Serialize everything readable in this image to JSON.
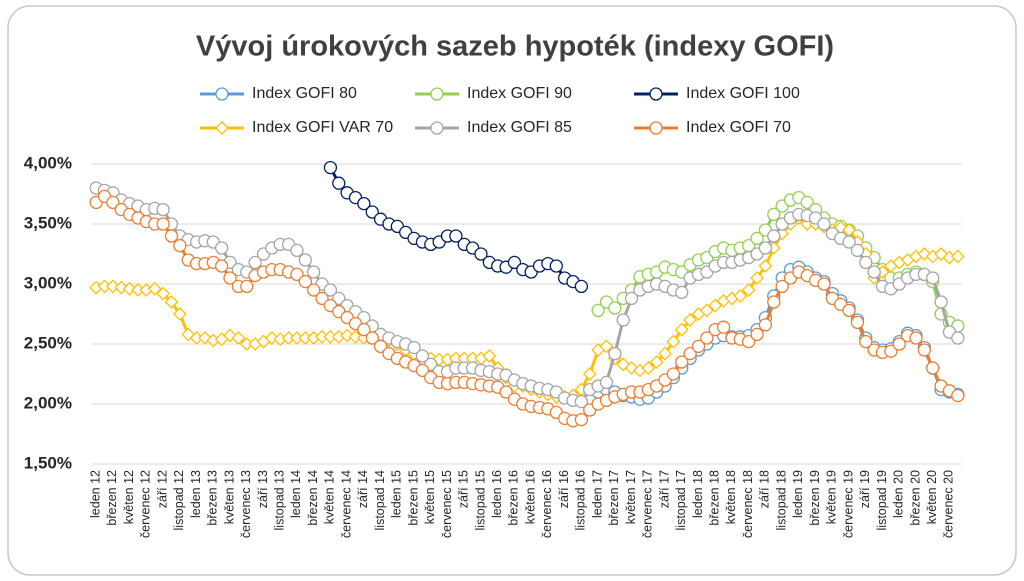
{
  "chart_data": {
    "type": "line",
    "title": "Vývoj úrokových sazeb hypoték (indexy GOFI)",
    "categories": [
      "leden 12",
      null,
      "březen 12",
      null,
      "květen 12",
      null,
      "červenec 12",
      null,
      "září 12",
      null,
      "listopad 12",
      null,
      "leden 13",
      null,
      "březen 13",
      null,
      "květen 13",
      null,
      "červenec 13",
      null,
      "září 13",
      null,
      "listopad 13",
      null,
      "leden 14",
      null,
      "březen 14",
      null,
      "květen 14",
      null,
      "červenec 14",
      null,
      "září 14",
      null,
      "listopad 14",
      null,
      "leden 15",
      null,
      "březen 15",
      null,
      "květen 15",
      null,
      "červenec 15",
      null,
      "září 15",
      null,
      "listopad 15",
      null,
      "leden 16",
      null,
      "březen 16",
      null,
      "květen 16",
      null,
      "červenec 16",
      null,
      "září 16",
      null,
      "listopad 16",
      null,
      "leden 17",
      null,
      "březen 17",
      null,
      "květen 17",
      null,
      "červenec 17",
      null,
      "září 17",
      null,
      "listopad 17",
      null,
      "leden 18",
      null,
      "březen 18",
      null,
      "květen 18",
      null,
      "červenec 18",
      null,
      "září 18",
      null,
      "listopad 18",
      null,
      "leden 19",
      null,
      "březen 19",
      null,
      "květen 19",
      null,
      "červenec 19",
      null,
      "září 19",
      null,
      "listopad 19",
      null,
      "leden 20",
      null,
      "březen 20",
      null,
      "květen 20",
      null,
      "červenec 20",
      null
    ],
    "series": [
      {
        "name": "Index GOFI 80",
        "color": "#5b9bd5",
        "marker": "circle",
        "values": [
          null,
          null,
          null,
          null,
          null,
          null,
          null,
          null,
          null,
          null,
          null,
          null,
          null,
          null,
          null,
          null,
          null,
          null,
          null,
          null,
          null,
          null,
          null,
          null,
          null,
          null,
          null,
          null,
          null,
          null,
          null,
          null,
          null,
          null,
          null,
          null,
          null,
          null,
          null,
          null,
          null,
          null,
          null,
          null,
          null,
          null,
          null,
          null,
          null,
          null,
          null,
          null,
          null,
          null,
          null,
          null,
          null,
          null,
          null,
          null,
          2.1,
          2.12,
          2.1,
          2.07,
          2.06,
          2.04,
          2.05,
          2.1,
          2.15,
          2.22,
          2.3,
          2.38,
          2.45,
          2.5,
          2.55,
          2.57,
          2.56,
          2.56,
          2.57,
          2.62,
          2.72,
          2.9,
          3.05,
          3.12,
          3.14,
          3.1,
          3.05,
          3.02,
          2.92,
          2.86,
          2.8,
          2.7,
          2.55,
          2.47,
          2.45,
          2.46,
          2.52,
          2.59,
          2.57,
          2.47,
          2.3,
          2.12,
          2.1,
          2.08
        ]
      },
      {
        "name": "Index GOFI 90",
        "color": "#92d050",
        "marker": "circle",
        "values": [
          null,
          null,
          null,
          null,
          null,
          null,
          null,
          null,
          null,
          null,
          null,
          null,
          null,
          null,
          null,
          null,
          null,
          null,
          null,
          null,
          null,
          null,
          null,
          null,
          null,
          null,
          null,
          null,
          null,
          null,
          null,
          null,
          null,
          null,
          null,
          null,
          null,
          null,
          null,
          null,
          null,
          null,
          null,
          null,
          null,
          null,
          null,
          null,
          null,
          null,
          null,
          null,
          null,
          null,
          null,
          null,
          null,
          null,
          null,
          null,
          2.78,
          2.85,
          2.8,
          2.88,
          2.95,
          3.06,
          3.08,
          3.1,
          3.14,
          3.12,
          3.1,
          3.16,
          3.2,
          3.22,
          3.27,
          3.3,
          3.28,
          3.3,
          3.32,
          3.38,
          3.45,
          3.58,
          3.65,
          3.7,
          3.72,
          3.68,
          3.62,
          3.55,
          3.5,
          3.48,
          3.45,
          3.4,
          3.3,
          3.22,
          3.12,
          3.05,
          3.05,
          3.08,
          3.1,
          3.08,
          3.02,
          2.75,
          2.68,
          2.65
        ]
      },
      {
        "name": "Index GOFI 100",
        "color": "#002060",
        "marker": "circle",
        "values": [
          null,
          null,
          null,
          null,
          null,
          null,
          null,
          null,
          null,
          null,
          null,
          null,
          null,
          null,
          null,
          null,
          null,
          null,
          null,
          null,
          null,
          null,
          null,
          null,
          null,
          null,
          null,
          null,
          3.97,
          3.84,
          3.76,
          3.72,
          3.67,
          3.6,
          3.54,
          3.5,
          3.48,
          3.43,
          3.38,
          3.35,
          3.33,
          3.35,
          3.4,
          3.4,
          3.33,
          3.3,
          3.25,
          3.18,
          3.15,
          3.14,
          3.18,
          3.12,
          3.1,
          3.15,
          3.17,
          3.15,
          3.05,
          3.02,
          2.98,
          null,
          null,
          null,
          null,
          null,
          null,
          null,
          null,
          null,
          null,
          null,
          null,
          null,
          null,
          null,
          null,
          null,
          null,
          null,
          null,
          null,
          null,
          null,
          null,
          null,
          null,
          null,
          null,
          null,
          null,
          null,
          null,
          null,
          null,
          null,
          null,
          null,
          null,
          null,
          null,
          null,
          null,
          null,
          null,
          null
        ]
      },
      {
        "name": "Index GOFI VAR 70",
        "color": "#ffc000",
        "marker": "diamond",
        "values": [
          2.97,
          2.98,
          2.98,
          2.97,
          2.96,
          2.95,
          2.95,
          2.96,
          2.92,
          2.85,
          2.75,
          2.58,
          2.55,
          2.55,
          2.53,
          2.54,
          2.57,
          2.55,
          2.5,
          2.5,
          2.52,
          2.55,
          2.54,
          2.55,
          2.55,
          2.55,
          2.55,
          2.56,
          2.56,
          2.56,
          2.57,
          2.56,
          2.55,
          2.55,
          2.55,
          2.53,
          2.5,
          2.45,
          2.42,
          2.4,
          2.38,
          2.37,
          2.37,
          2.38,
          2.38,
          2.38,
          2.38,
          2.4,
          2.3,
          2.22,
          2.15,
          2.15,
          2.12,
          2.1,
          2.08,
          2.06,
          2.06,
          2.07,
          2.12,
          2.25,
          2.45,
          2.48,
          2.38,
          2.33,
          2.3,
          2.28,
          2.3,
          2.35,
          2.42,
          2.52,
          2.62,
          2.7,
          2.75,
          2.78,
          2.82,
          2.86,
          2.88,
          2.9,
          2.95,
          3.05,
          3.15,
          3.3,
          3.42,
          3.5,
          3.55,
          3.5,
          3.5,
          3.48,
          3.45,
          3.47,
          3.45,
          3.35,
          3.25,
          3.05,
          3.1,
          3.15,
          3.18,
          3.2,
          3.23,
          3.25,
          3.23,
          3.25,
          3.22,
          3.23
        ]
      },
      {
        "name": "Index GOFI 85",
        "color": "#a5a5a5",
        "marker": "circle",
        "values": [
          3.8,
          3.78,
          3.76,
          3.7,
          3.67,
          3.65,
          3.62,
          3.63,
          3.62,
          3.5,
          3.4,
          3.37,
          3.35,
          3.36,
          3.35,
          3.3,
          3.18,
          3.12,
          3.1,
          3.18,
          3.25,
          3.3,
          3.33,
          3.33,
          3.28,
          3.2,
          3.1,
          3.0,
          2.95,
          2.88,
          2.82,
          2.77,
          2.72,
          2.65,
          2.58,
          2.55,
          2.52,
          2.5,
          2.47,
          2.4,
          2.33,
          2.27,
          2.27,
          2.3,
          2.3,
          2.3,
          2.28,
          2.27,
          2.25,
          2.24,
          2.2,
          2.17,
          2.15,
          2.13,
          2.12,
          2.1,
          2.05,
          2.03,
          2.02,
          2.12,
          2.15,
          2.18,
          2.42,
          2.7,
          2.88,
          2.95,
          2.98,
          3.0,
          2.98,
          2.95,
          2.93,
          3.05,
          3.08,
          3.1,
          3.15,
          3.18,
          3.18,
          3.2,
          3.22,
          3.25,
          3.3,
          3.4,
          3.5,
          3.55,
          3.58,
          3.57,
          3.55,
          3.5,
          3.42,
          3.38,
          3.35,
          3.28,
          3.18,
          3.1,
          2.98,
          2.96,
          3.0,
          3.05,
          3.08,
          3.08,
          3.05,
          2.85,
          2.6,
          2.55
        ]
      },
      {
        "name": "Index GOFI 70",
        "color": "#ed7d31",
        "marker": "circle",
        "values": [
          3.68,
          3.73,
          3.68,
          3.62,
          3.58,
          3.55,
          3.52,
          3.5,
          3.5,
          3.4,
          3.32,
          3.2,
          3.17,
          3.17,
          3.18,
          3.15,
          3.05,
          2.98,
          2.98,
          3.07,
          3.1,
          3.12,
          3.12,
          3.1,
          3.08,
          3.02,
          2.95,
          2.88,
          2.82,
          2.77,
          2.72,
          2.67,
          2.62,
          2.55,
          2.48,
          2.42,
          2.38,
          2.35,
          2.32,
          2.28,
          2.22,
          2.18,
          2.17,
          2.18,
          2.18,
          2.17,
          2.16,
          2.15,
          2.14,
          2.1,
          2.04,
          2.0,
          1.98,
          1.97,
          1.96,
          1.93,
          1.88,
          1.86,
          1.87,
          1.95,
          2.0,
          2.03,
          2.06,
          2.08,
          2.1,
          2.1,
          2.12,
          2.15,
          2.2,
          2.25,
          2.35,
          2.42,
          2.48,
          2.55,
          2.62,
          2.64,
          2.55,
          2.54,
          2.52,
          2.58,
          2.66,
          2.85,
          2.98,
          3.05,
          3.1,
          3.07,
          3.03,
          3.0,
          2.88,
          2.83,
          2.78,
          2.68,
          2.52,
          2.45,
          2.43,
          2.44,
          2.5,
          2.57,
          2.55,
          2.45,
          2.3,
          2.15,
          2.11,
          2.07
        ]
      }
    ],
    "ylim": [
      1.5,
      4.0
    ],
    "yticks": [
      {
        "value": 1.5,
        "label": "1,50%"
      },
      {
        "value": 2.0,
        "label": "2,00%"
      },
      {
        "value": 2.5,
        "label": "2,50%"
      },
      {
        "value": 3.0,
        "label": "3,00%"
      },
      {
        "value": 3.5,
        "label": "3,50%"
      },
      {
        "value": 4.0,
        "label": "4,00%"
      }
    ],
    "grid": true
  }
}
